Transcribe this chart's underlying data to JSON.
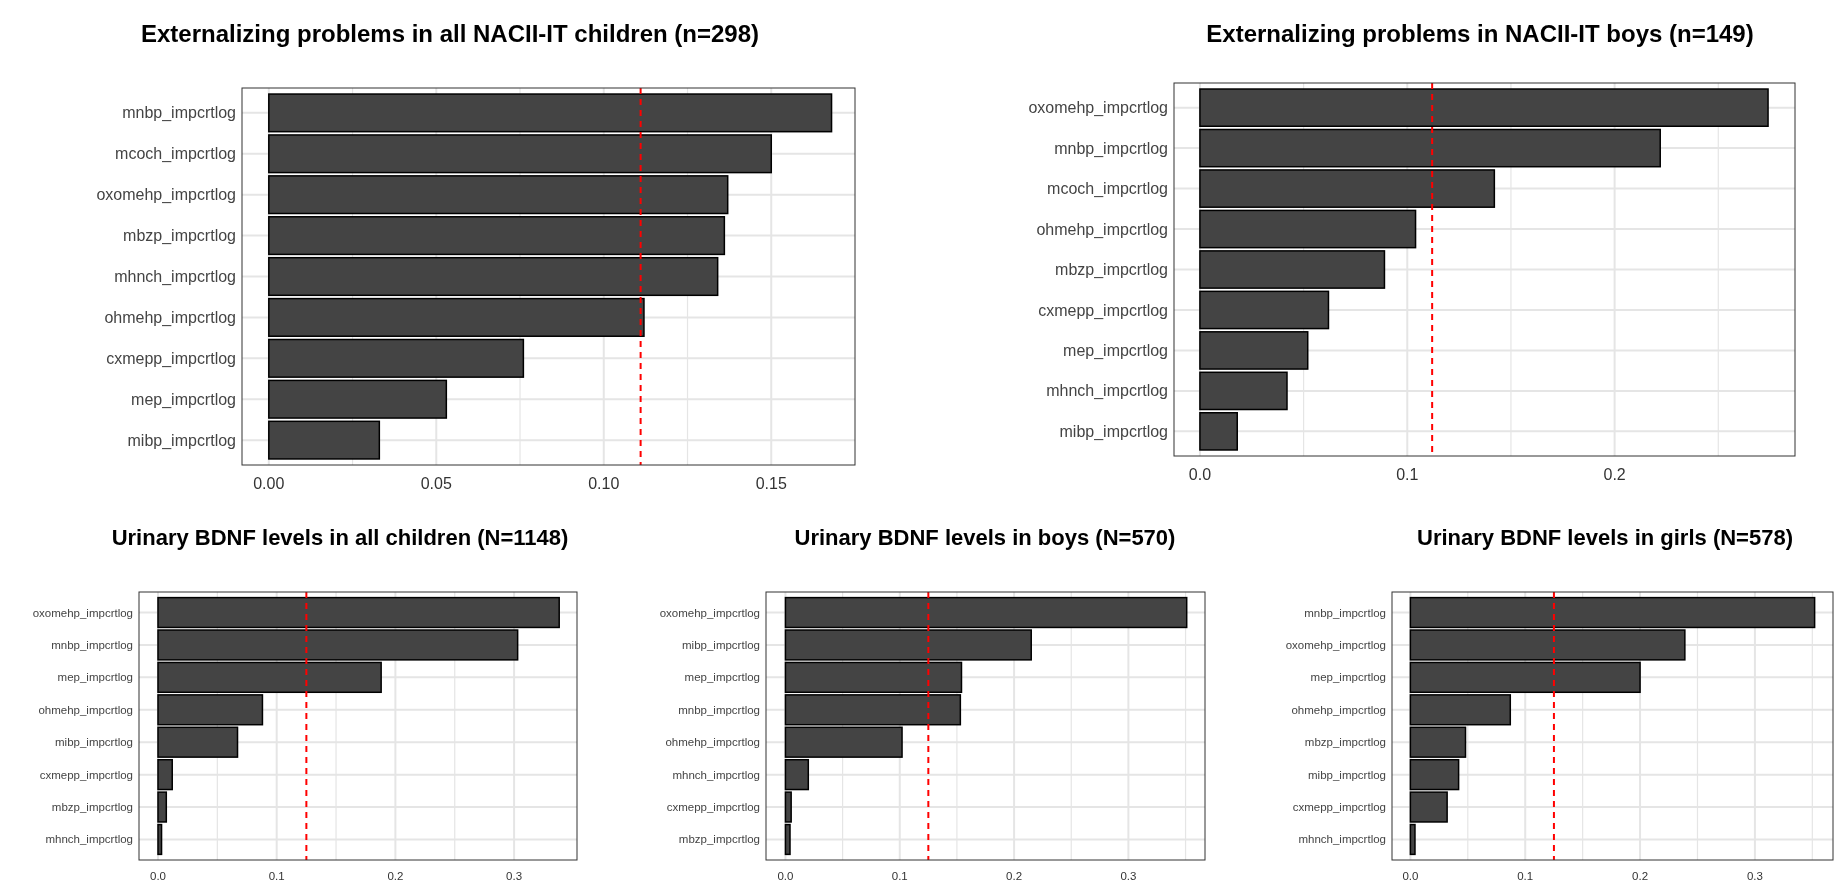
{
  "chart_data": [
    {
      "type": "bar",
      "orientation": "horizontal",
      "title": "Externalizing problems in all NACII-IT children (n=298)",
      "categories": [
        "mnbp_impcrtlog",
        "mcoch_impcrtlog",
        "oxomehp_impcrtlog",
        "mbzp_impcrtlog",
        "mhnch_impcrtlog",
        "ohmehp_impcrtlog",
        "cxmepp_impcrtlog",
        "mep_impcrtlog",
        "mibp_impcrtlog"
      ],
      "values": [
        0.168,
        0.15,
        0.137,
        0.136,
        0.134,
        0.112,
        0.076,
        0.053,
        0.033
      ],
      "color": "#444444",
      "xlim": [
        -0.008,
        0.175
      ],
      "xticks": [
        {
          "value": 0,
          "label": "0.00"
        },
        {
          "value": 0.025,
          "label": null
        },
        {
          "value": 0.05,
          "label": "0.05"
        },
        {
          "value": 0.075,
          "label": null
        },
        {
          "value": 0.1,
          "label": "0.10"
        },
        {
          "value": 0.125,
          "label": null
        },
        {
          "value": 0.15,
          "label": "0.15"
        }
      ],
      "grid": true,
      "ref_lines": [
        {
          "axis": "x",
          "value": 0.111,
          "color": "#ff0000",
          "line_style": "dashed"
        }
      ]
    },
    {
      "type": "bar",
      "orientation": "horizontal",
      "title": "Externalizing problems in NACII-IT boys (n=149)",
      "categories": [
        "oxomehp_impcrtlog",
        "mnbp_impcrtlog",
        "mcoch_impcrtlog",
        "ohmehp_impcrtlog",
        "mbzp_impcrtlog",
        "cxmepp_impcrtlog",
        "mep_impcrtlog",
        "mhnch_impcrtlog",
        "mibp_impcrtlog"
      ],
      "values": [
        0.274,
        0.222,
        0.142,
        0.104,
        0.089,
        0.062,
        0.052,
        0.042,
        0.018
      ],
      "color": "#444444",
      "xlim": [
        -0.0125,
        0.287
      ],
      "xticks": [
        {
          "value": 0,
          "label": "0.0"
        },
        {
          "value": 0.05,
          "label": null
        },
        {
          "value": 0.1,
          "label": "0.1"
        },
        {
          "value": 0.15,
          "label": null
        },
        {
          "value": 0.2,
          "label": "0.2"
        },
        {
          "value": 0.25,
          "label": null
        }
      ],
      "grid": true,
      "ref_lines": [
        {
          "axis": "x",
          "value": 0.112,
          "color": "#ff0000",
          "line_style": "dashed"
        }
      ]
    },
    {
      "type": "bar",
      "orientation": "horizontal",
      "title": "Urinary BDNF levels in all children (N=1148)",
      "categories": [
        "oxomehp_impcrtlog",
        "mnbp_impcrtlog",
        "mep_impcrtlog",
        "ohmehp_impcrtlog",
        "mibp_impcrtlog",
        "cxmepp_impcrtlog",
        "mbzp_impcrtlog",
        "mhnch_impcrtlog"
      ],
      "values": [
        0.338,
        0.303,
        0.188,
        0.088,
        0.067,
        0.012,
        0.007,
        0.003
      ],
      "color": "#444444",
      "xlim": [
        -0.016,
        0.353
      ],
      "xticks": [
        {
          "value": 0,
          "label": "0.0"
        },
        {
          "value": 0.05,
          "label": null
        },
        {
          "value": 0.1,
          "label": "0.1"
        },
        {
          "value": 0.15,
          "label": null
        },
        {
          "value": 0.2,
          "label": "0.2"
        },
        {
          "value": 0.25,
          "label": null
        },
        {
          "value": 0.3,
          "label": "0.3"
        }
      ],
      "grid": true,
      "ref_lines": [
        {
          "axis": "x",
          "value": 0.125,
          "color": "#ff0000",
          "line_style": "dashed"
        }
      ]
    },
    {
      "type": "bar",
      "orientation": "horizontal",
      "title": "Urinary BDNF levels in boys (N=570)",
      "categories": [
        "oxomehp_impcrtlog",
        "mibp_impcrtlog",
        "mep_impcrtlog",
        "mnbp_impcrtlog",
        "ohmehp_impcrtlog",
        "mhnch_impcrtlog",
        "cxmepp_impcrtlog",
        "mbzp_impcrtlog"
      ],
      "values": [
        0.351,
        0.215,
        0.154,
        0.153,
        0.102,
        0.02,
        0.005,
        0.004
      ],
      "color": "#444444",
      "xlim": [
        -0.017,
        0.367
      ],
      "xticks": [
        {
          "value": 0,
          "label": "0.0"
        },
        {
          "value": 0.05,
          "label": null
        },
        {
          "value": 0.1,
          "label": "0.1"
        },
        {
          "value": 0.15,
          "label": null
        },
        {
          "value": 0.2,
          "label": "0.2"
        },
        {
          "value": 0.25,
          "label": null
        },
        {
          "value": 0.3,
          "label": "0.3"
        },
        {
          "value": 0.35,
          "label": null
        }
      ],
      "grid": true,
      "ref_lines": [
        {
          "axis": "x",
          "value": 0.125,
          "color": "#ff0000",
          "line_style": "dashed"
        }
      ]
    },
    {
      "type": "bar",
      "orientation": "horizontal",
      "title": "Urinary BDNF levels in girls (N=578)",
      "categories": [
        "mnbp_impcrtlog",
        "oxomehp_impcrtlog",
        "mep_impcrtlog",
        "ohmehp_impcrtlog",
        "mbzp_impcrtlog",
        "mibp_impcrtlog",
        "cxmepp_impcrtlog",
        "mhnch_impcrtlog"
      ],
      "values": [
        0.352,
        0.239,
        0.2,
        0.087,
        0.048,
        0.042,
        0.032,
        0.004
      ],
      "color": "#444444",
      "xlim": [
        -0.016,
        0.368
      ],
      "xticks": [
        {
          "value": 0,
          "label": "0.0"
        },
        {
          "value": 0.05,
          "label": null
        },
        {
          "value": 0.1,
          "label": "0.1"
        },
        {
          "value": 0.15,
          "label": null
        },
        {
          "value": 0.2,
          "label": "0.2"
        },
        {
          "value": 0.25,
          "label": null
        },
        {
          "value": 0.3,
          "label": "0.3"
        },
        {
          "value": 0.35,
          "label": null
        }
      ],
      "grid": true,
      "ref_lines": [
        {
          "axis": "x",
          "value": 0.125,
          "color": "#ff0000",
          "line_style": "dashed"
        }
      ]
    }
  ]
}
